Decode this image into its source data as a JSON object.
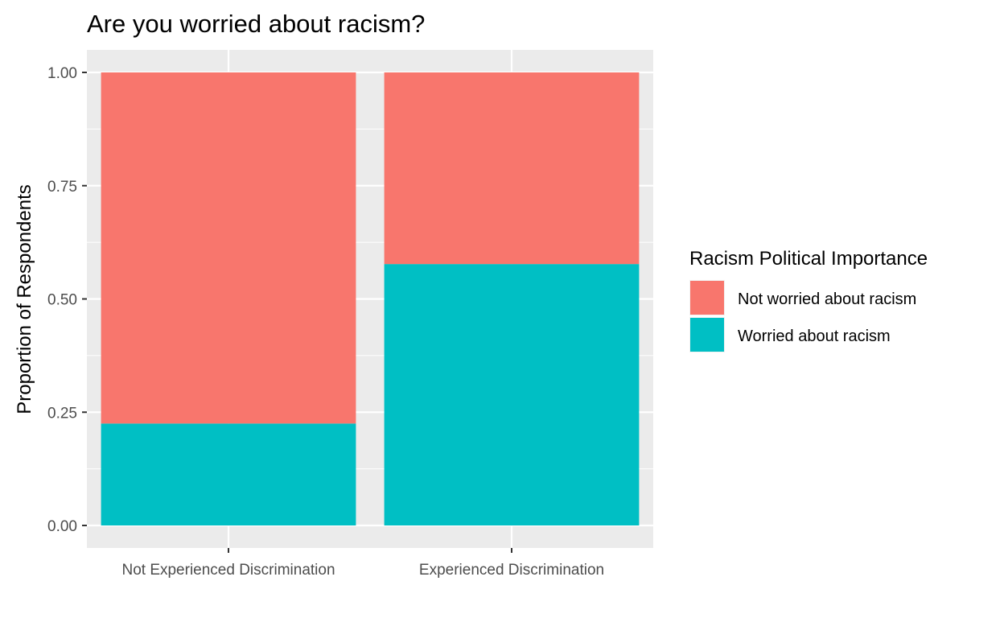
{
  "chart_data": {
    "type": "bar",
    "stacked": true,
    "title": "Are you worried about racism?",
    "xlabel": "",
    "ylabel": "Proportion of Respondents",
    "ylim": [
      0,
      1
    ],
    "yticks": [
      "0.00",
      "0.25",
      "0.50",
      "0.75",
      "1.00"
    ],
    "categories": [
      "Not Experienced Discrimination",
      "Experienced Discrimination"
    ],
    "series": [
      {
        "name": "Not worried about racism",
        "values": [
          0.775,
          0.423
        ],
        "color": "#F8766D"
      },
      {
        "name": "Worried about racism",
        "values": [
          0.225,
          0.577
        ],
        "color": "#00BFC4"
      }
    ],
    "legend": {
      "title": "Racism Political Importance",
      "placement": "right"
    },
    "grid": true,
    "panel_background": "#EBEBEB"
  }
}
